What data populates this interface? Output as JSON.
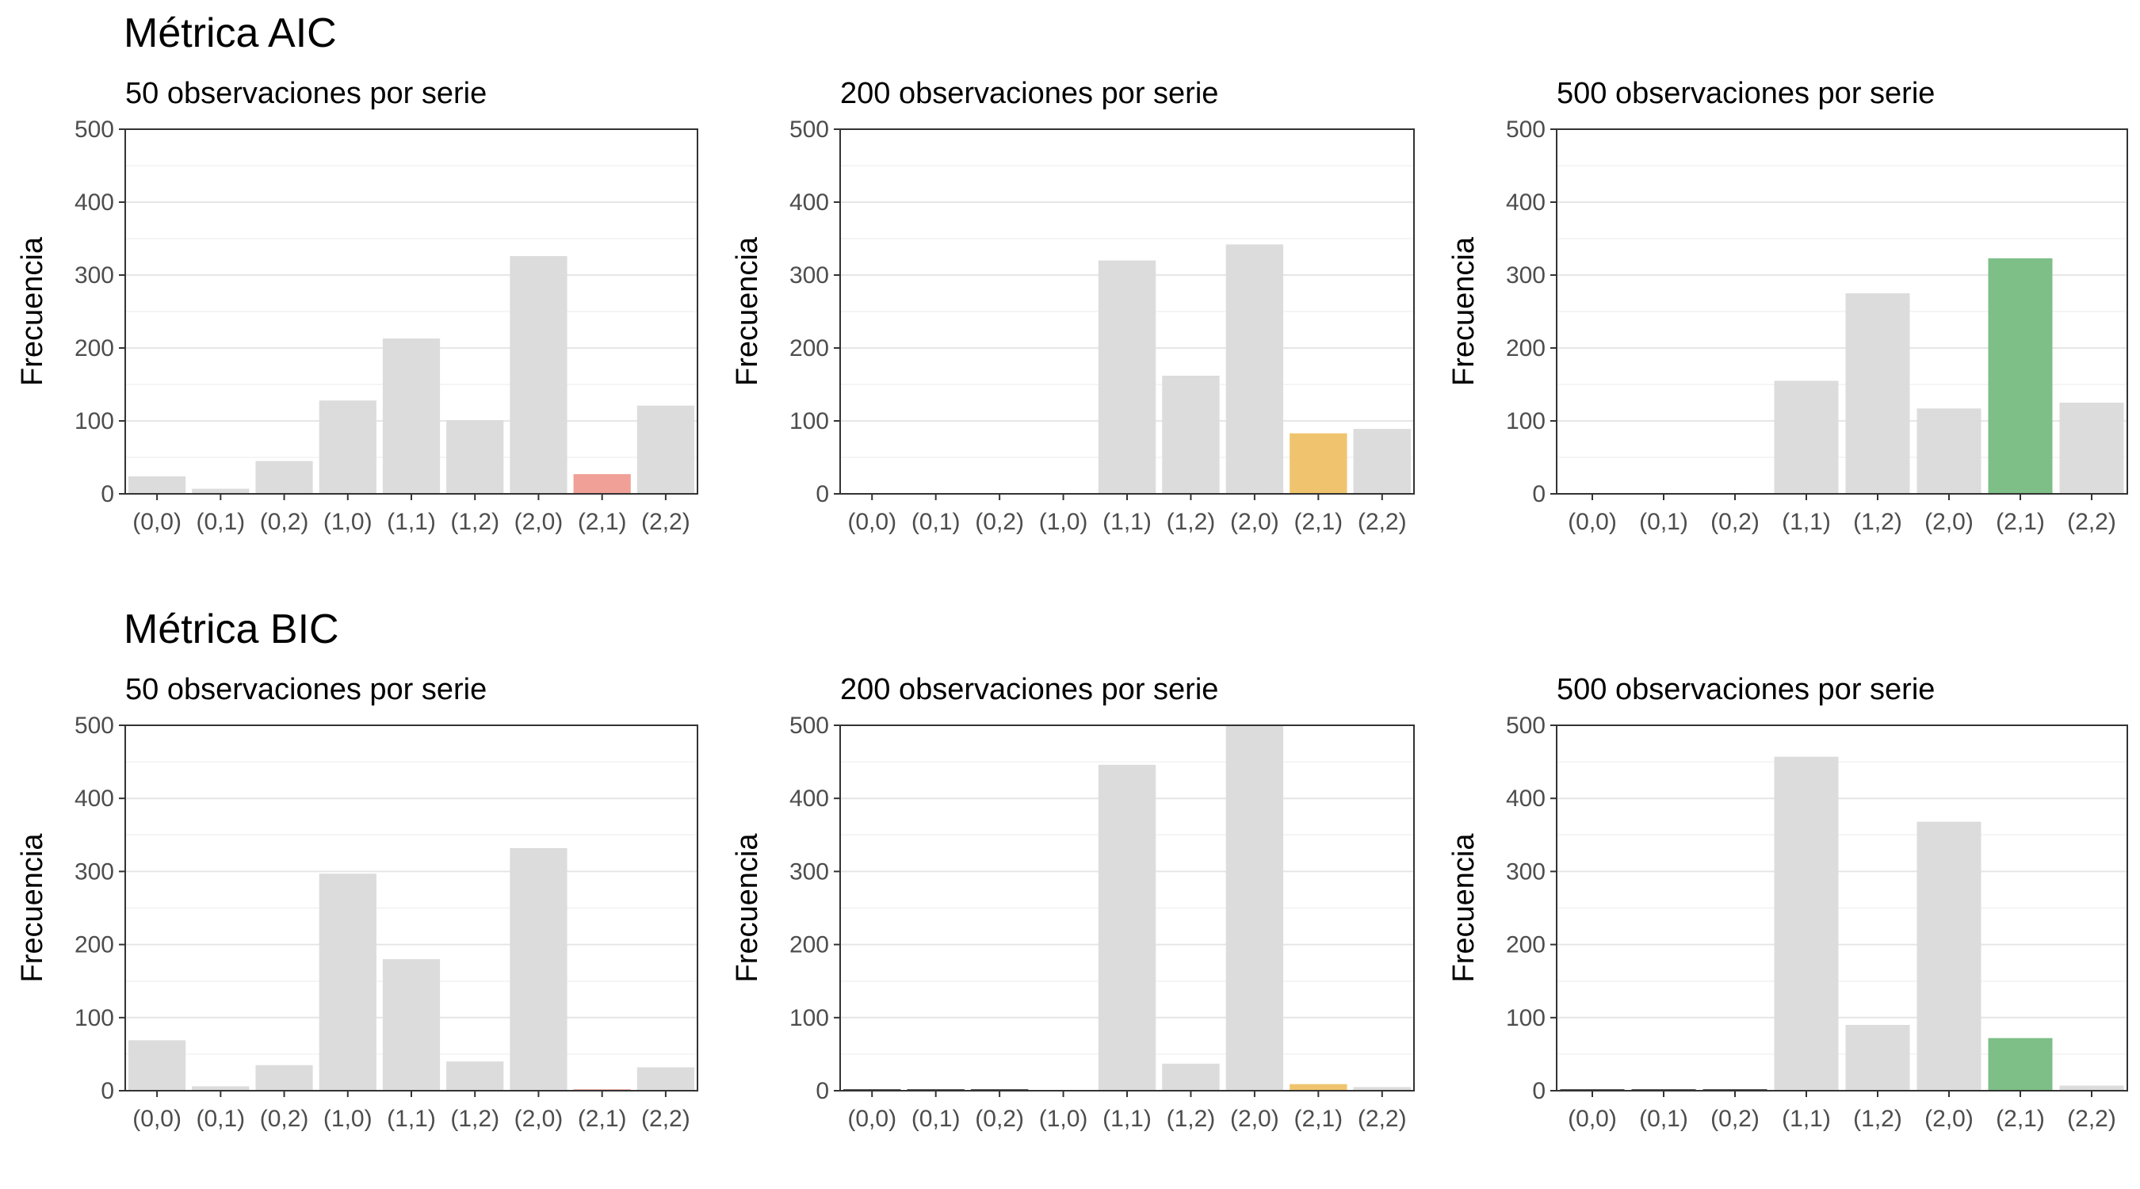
{
  "figure": {
    "rows": [
      {
        "title": "Métrica AIC"
      },
      {
        "title": "Métrica BIC"
      }
    ]
  },
  "colors": {
    "default_bar": "#dcdcdc",
    "highlight_50": "#f0a096",
    "highlight_200": "#f0c46e",
    "highlight_500": "#7dbf86",
    "grid_major": "#e6e6e6",
    "grid_minor": "#f2f2f2",
    "panel_border": "#333333",
    "zero_bar": "#333333"
  },
  "chart_data": [
    {
      "type": "bar",
      "metric": "AIC",
      "subtitle": "50 observaciones por serie",
      "ylabel": "Frecuencia",
      "ylim": [
        0,
        500
      ],
      "yticks": [
        0,
        100,
        200,
        300,
        400,
        500
      ],
      "categories": [
        "(0,0)",
        "(0,1)",
        "(0,2)",
        "(1,0)",
        "(1,1)",
        "(1,2)",
        "(2,0)",
        "(2,1)",
        "(2,2)"
      ],
      "values": [
        24,
        7,
        45,
        128,
        213,
        101,
        326,
        27,
        121
      ],
      "highlight": "(2,1)",
      "highlight_color": "#f0a096"
    },
    {
      "type": "bar",
      "metric": "AIC",
      "subtitle": "200 observaciones por serie",
      "ylabel": "Frecuencia",
      "ylim": [
        0,
        500
      ],
      "yticks": [
        0,
        100,
        200,
        300,
        400,
        500
      ],
      "categories": [
        "(0,0)",
        "(0,1)",
        "(0,2)",
        "(1,0)",
        "(1,1)",
        "(1,2)",
        "(2,0)",
        "(2,1)",
        "(2,2)"
      ],
      "values": [
        0,
        0,
        0,
        0,
        320,
        162,
        342,
        83,
        89
      ],
      "highlight": "(2,1)",
      "highlight_color": "#f0c46e"
    },
    {
      "type": "bar",
      "metric": "AIC",
      "subtitle": "500 observaciones por serie",
      "ylabel": "Frecuencia",
      "ylim": [
        0,
        500
      ],
      "yticks": [
        0,
        100,
        200,
        300,
        400,
        500
      ],
      "categories": [
        "(0,0)",
        "(0,1)",
        "(0,2)",
        "(1,1)",
        "(1,2)",
        "(2,0)",
        "(2,1)",
        "(2,2)"
      ],
      "values": [
        0,
        0,
        0,
        155,
        275,
        117,
        323,
        125
      ],
      "highlight": "(2,1)",
      "highlight_color": "#7dbf86"
    },
    {
      "type": "bar",
      "metric": "BIC",
      "subtitle": "50 observaciones por serie",
      "ylabel": "Frecuencia",
      "ylim": [
        0,
        500
      ],
      "yticks": [
        0,
        100,
        200,
        300,
        400,
        500
      ],
      "categories": [
        "(0,0)",
        "(0,1)",
        "(0,2)",
        "(1,0)",
        "(1,1)",
        "(1,2)",
        "(2,0)",
        "(2,1)",
        "(2,2)"
      ],
      "values": [
        69,
        6,
        35,
        297,
        180,
        40,
        332,
        2,
        32
      ],
      "highlight": "(2,1)",
      "highlight_color": "#f0a096"
    },
    {
      "type": "bar",
      "metric": "BIC",
      "subtitle": "200 observaciones por serie",
      "ylabel": "Frecuencia",
      "ylim": [
        0,
        500
      ],
      "yticks": [
        0,
        100,
        200,
        300,
        400,
        500
      ],
      "categories": [
        "(0,0)",
        "(0,1)",
        "(0,2)",
        "(1,0)",
        "(1,1)",
        "(1,2)",
        "(2,0)",
        "(2,1)",
        "(2,2)"
      ],
      "values": [
        2,
        2,
        2,
        0,
        446,
        37,
        500,
        9,
        5
      ],
      "highlight": "(2,1)",
      "highlight_color": "#f0c46e"
    },
    {
      "type": "bar",
      "metric": "BIC",
      "subtitle": "500 observaciones por serie",
      "ylabel": "Frecuencia",
      "ylim": [
        0,
        500
      ],
      "yticks": [
        0,
        100,
        200,
        300,
        400,
        500
      ],
      "categories": [
        "(0,0)",
        "(0,1)",
        "(0,2)",
        "(1,1)",
        "(1,2)",
        "(2,0)",
        "(2,1)",
        "(2,2)"
      ],
      "values": [
        2,
        2,
        2,
        457,
        90,
        368,
        72,
        7
      ],
      "highlight": "(2,1)",
      "highlight_color": "#7dbf86"
    }
  ]
}
